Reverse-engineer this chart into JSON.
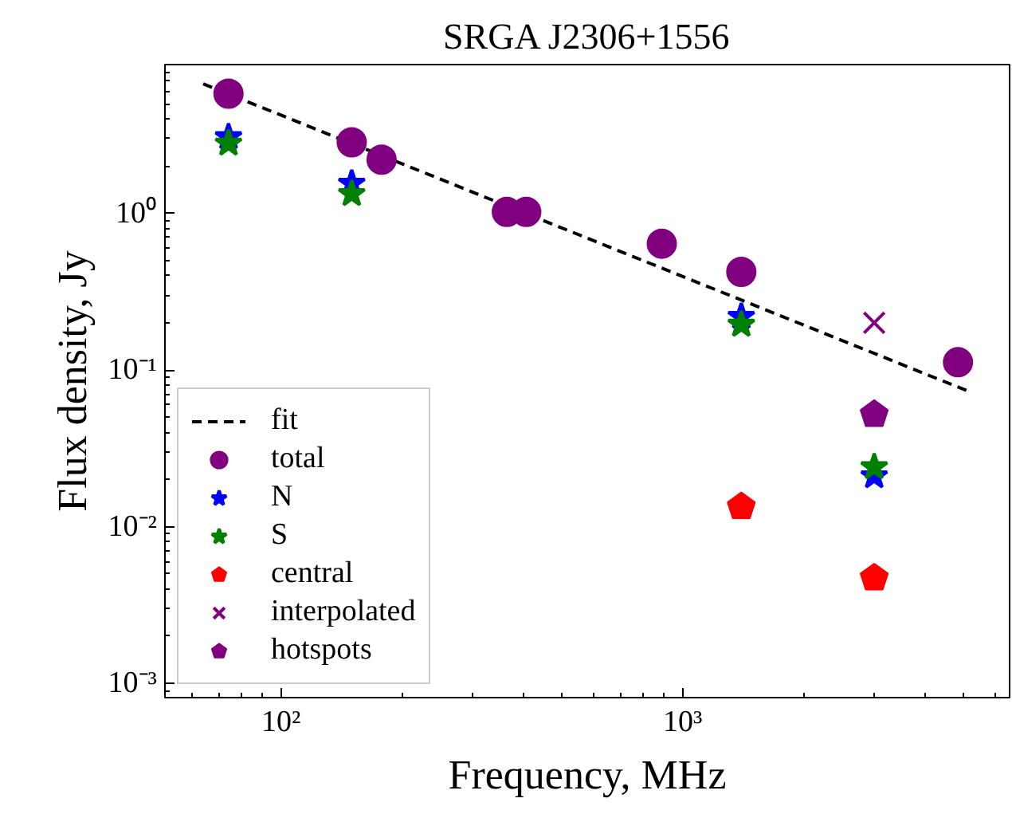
{
  "chart_data": {
    "type": "scatter",
    "title": "SRGA J2306+1556",
    "xlabel": "Frequency, MHz",
    "ylabel": "Flux density, Jy",
    "log": "xy",
    "grid": false,
    "legend": "bottom left",
    "xlim": [
      51.4,
      6520
    ],
    "ylim": [
      0.00081,
      8.9
    ],
    "xticks": [
      {
        "value": 100,
        "label": "10²"
      },
      {
        "value": 1000,
        "label": "10³"
      }
    ],
    "yticks": [
      {
        "value": 0.001,
        "label": "10⁻³"
      },
      {
        "value": 0.01,
        "label": "10⁻²"
      },
      {
        "value": 0.1,
        "label": "10⁻¹"
      },
      {
        "value": 1,
        "label": "10⁰"
      }
    ],
    "series": [
      {
        "name": "fit",
        "type": "line",
        "line_style": "dashed",
        "marker": "none",
        "color": "#000000",
        "x": [
          64,
          5160
        ],
        "values": [
          6.7,
          0.073
        ]
      },
      {
        "name": "total",
        "marker": "circle",
        "color": "#800080",
        "x": [
          74,
          150,
          178,
          365,
          408,
          887.5,
          1400,
          4850
        ],
        "values": [
          5.8,
          2.84,
          2.2,
          1.02,
          1.02,
          0.64,
          0.423,
          0.112
        ]
      },
      {
        "name": "N",
        "marker": "star",
        "color": "#0000ff",
        "x": [
          74,
          150,
          1400,
          3000
        ],
        "values": [
          3.07,
          1.55,
          0.219,
          0.021
        ]
      },
      {
        "name": "S",
        "marker": "star",
        "color": "#008000",
        "x": [
          74,
          150,
          1400,
          3000
        ],
        "values": [
          2.79,
          1.33,
          0.195,
          0.024
        ]
      },
      {
        "name": "central",
        "color": "#ff0000",
        "x": [
          1400,
          3000
        ],
        "values": [
          0.0134,
          0.0047
        ]
      },
      {
        "name": "interpolated",
        "marker": "cross",
        "color": "#800080",
        "x": [
          3000
        ],
        "values": [
          0.2
        ]
      },
      {
        "name": "hotspots",
        "color": "#800080",
        "x": [
          3000
        ],
        "values": [
          0.052
        ]
      }
    ]
  }
}
